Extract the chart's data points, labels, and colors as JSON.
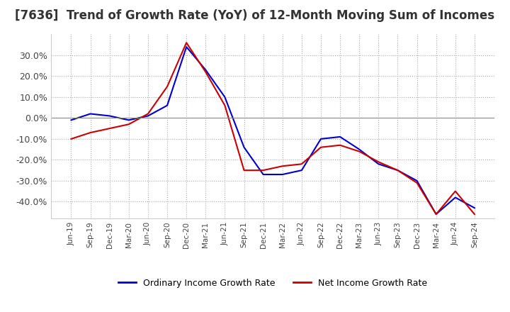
{
  "title": "[7636]  Trend of Growth Rate (YoY) of 12-Month Moving Sum of Incomes",
  "title_fontsize": 12,
  "background_color": "#ffffff",
  "grid_color": "#aaaaaa",
  "ylim": [
    -0.48,
    0.4
  ],
  "yticks": [
    -0.4,
    -0.3,
    -0.2,
    -0.1,
    0.0,
    0.1,
    0.2,
    0.3
  ],
  "legend_labels": [
    "Ordinary Income Growth Rate",
    "Net Income Growth Rate"
  ],
  "legend_colors": [
    "#0000cc",
    "#cc0000"
  ],
  "x_labels": [
    "Jun-19",
    "Sep-19",
    "Dec-19",
    "Mar-20",
    "Jun-20",
    "Sep-20",
    "Dec-20",
    "Mar-21",
    "Jun-21",
    "Sep-21",
    "Dec-21",
    "Mar-22",
    "Jun-22",
    "Sep-22",
    "Dec-22",
    "Mar-23",
    "Jun-23",
    "Sep-23",
    "Dec-23",
    "Mar-24",
    "Jun-24",
    "Sep-24"
  ],
  "ordinary_income": [
    -0.01,
    0.02,
    0.01,
    -0.01,
    0.01,
    0.06,
    0.34,
    0.23,
    0.1,
    -0.14,
    -0.27,
    -0.27,
    -0.25,
    -0.1,
    -0.09,
    -0.15,
    -0.22,
    -0.25,
    -0.3,
    -0.46,
    -0.38,
    -0.43
  ],
  "net_income": [
    -0.1,
    -0.07,
    -0.05,
    -0.03,
    0.02,
    0.15,
    0.36,
    0.22,
    0.06,
    -0.25,
    -0.25,
    -0.23,
    -0.22,
    -0.14,
    -0.13,
    -0.16,
    -0.21,
    -0.25,
    -0.31,
    -0.46,
    -0.35,
    -0.46
  ]
}
